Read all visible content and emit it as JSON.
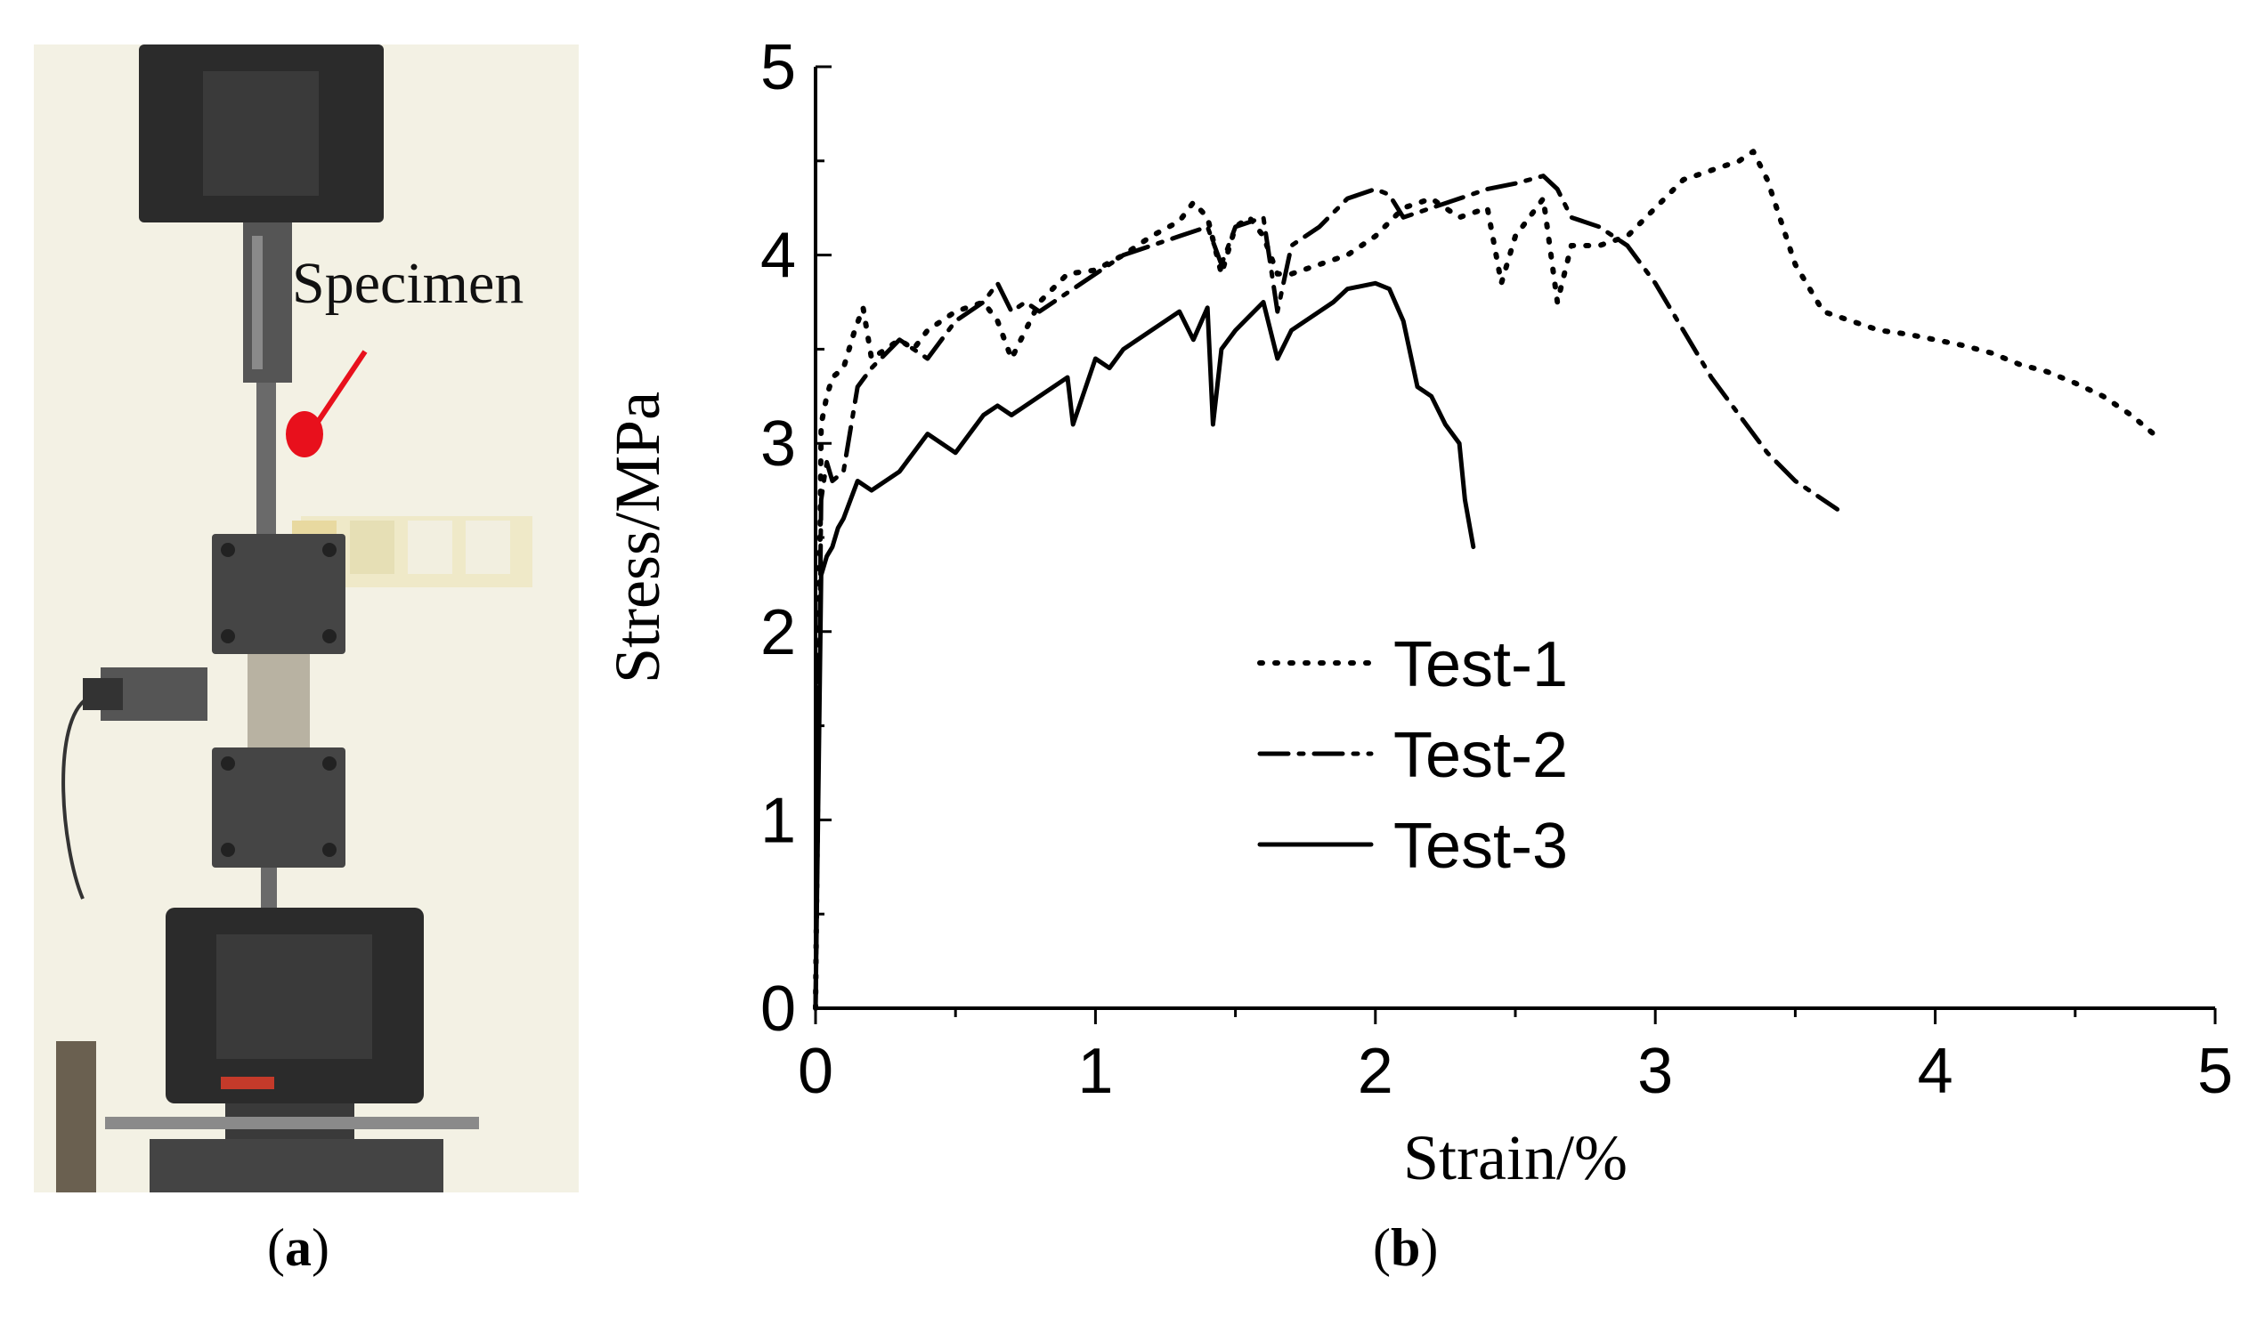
{
  "panel_a": {
    "caption_open": "(",
    "caption_letter": "a",
    "caption_close": ")",
    "specimen_label": "Specimen",
    "colors": {
      "marker": "#e8101c",
      "background": "#f3f1e4",
      "machine": "#2b2b2b"
    }
  },
  "panel_b": {
    "caption_open": "(",
    "caption_letter": "b",
    "caption_close": ")"
  },
  "chart_data": {
    "type": "line",
    "title": "",
    "xlabel": "Strain/%",
    "ylabel": "Stress/MPa",
    "xlim": [
      0,
      5
    ],
    "ylim": [
      0,
      5
    ],
    "xticks": [
      "0",
      "1",
      "2",
      "3",
      "4",
      "5"
    ],
    "yticks": [
      "0",
      "1",
      "2",
      "3",
      "4",
      "5"
    ],
    "grid": false,
    "legend": "center-left",
    "series": [
      {
        "name": "Test-1",
        "style": "dotted",
        "x": [
          0,
          0.02,
          0.04,
          0.06,
          0.1,
          0.14,
          0.17,
          0.2,
          0.25,
          0.3,
          0.35,
          0.4,
          0.5,
          0.6,
          0.65,
          0.7,
          0.8,
          0.9,
          1.0,
          1.1,
          1.2,
          1.3,
          1.35,
          1.4,
          1.45,
          1.5,
          1.55,
          1.6,
          1.65,
          1.7,
          1.8,
          1.9,
          2.0,
          2.1,
          2.2,
          2.3,
          2.4,
          2.45,
          2.5,
          2.55,
          2.6,
          2.65,
          2.7,
          2.8,
          2.9,
          3.0,
          3.1,
          3.2,
          3.3,
          3.35,
          3.4,
          3.5,
          3.6,
          3.7,
          3.8,
          3.9,
          4.0,
          4.1,
          4.2,
          4.3,
          4.4,
          4.5,
          4.6,
          4.7,
          4.78
        ],
        "y": [
          0,
          3.1,
          3.25,
          3.35,
          3.4,
          3.6,
          3.72,
          3.45,
          3.5,
          3.55,
          3.5,
          3.6,
          3.7,
          3.75,
          3.65,
          3.45,
          3.75,
          3.9,
          3.92,
          4.0,
          4.1,
          4.18,
          4.28,
          4.2,
          3.9,
          4.15,
          4.2,
          4.1,
          3.9,
          3.9,
          3.95,
          4.0,
          4.1,
          4.25,
          4.3,
          4.2,
          4.25,
          3.85,
          4.1,
          4.2,
          4.3,
          3.75,
          4.05,
          4.05,
          4.1,
          4.25,
          4.4,
          4.45,
          4.5,
          4.55,
          4.4,
          3.95,
          3.7,
          3.65,
          3.6,
          3.58,
          3.55,
          3.52,
          3.48,
          3.42,
          3.38,
          3.32,
          3.25,
          3.15,
          3.05
        ]
      },
      {
        "name": "Test-2",
        "style": "dashdot",
        "x": [
          0,
          0.02,
          0.04,
          0.06,
          0.1,
          0.15,
          0.2,
          0.3,
          0.4,
          0.5,
          0.6,
          0.65,
          0.7,
          0.75,
          0.8,
          0.9,
          1.0,
          1.1,
          1.2,
          1.3,
          1.4,
          1.45,
          1.5,
          1.6,
          1.65,
          1.7,
          1.8,
          1.9,
          2.0,
          2.05,
          2.1,
          2.2,
          2.3,
          2.4,
          2.5,
          2.6,
          2.65,
          2.7,
          2.8,
          2.9,
          3.0,
          3.1,
          3.2,
          3.3,
          3.4,
          3.5,
          3.6,
          3.65
        ],
        "y": [
          0,
          2.7,
          2.9,
          2.8,
          2.85,
          3.3,
          3.4,
          3.55,
          3.45,
          3.65,
          3.75,
          3.85,
          3.7,
          3.75,
          3.7,
          3.8,
          3.9,
          4.0,
          4.05,
          4.1,
          4.15,
          3.95,
          4.15,
          4.2,
          3.7,
          4.05,
          4.15,
          4.3,
          4.35,
          4.32,
          4.2,
          4.25,
          4.3,
          4.35,
          4.38,
          4.42,
          4.35,
          4.2,
          4.15,
          4.05,
          3.85,
          3.6,
          3.35,
          3.15,
          2.95,
          2.8,
          2.7,
          2.65
        ]
      },
      {
        "name": "Test-3",
        "style": "solid",
        "x": [
          0,
          0.02,
          0.04,
          0.06,
          0.08,
          0.1,
          0.15,
          0.2,
          0.3,
          0.4,
          0.5,
          0.6,
          0.65,
          0.7,
          0.8,
          0.9,
          0.92,
          1.0,
          1.05,
          1.1,
          1.2,
          1.3,
          1.35,
          1.4,
          1.42,
          1.45,
          1.5,
          1.6,
          1.65,
          1.7,
          1.8,
          1.85,
          1.9,
          2.0,
          2.05,
          2.1,
          2.15,
          2.2,
          2.25,
          2.3,
          2.32,
          2.35
        ],
        "y": [
          0,
          2.3,
          2.4,
          2.45,
          2.55,
          2.6,
          2.8,
          2.75,
          2.85,
          3.05,
          2.95,
          3.15,
          3.2,
          3.15,
          3.25,
          3.35,
          3.1,
          3.45,
          3.4,
          3.5,
          3.6,
          3.7,
          3.55,
          3.72,
          3.1,
          3.5,
          3.6,
          3.75,
          3.45,
          3.6,
          3.7,
          3.75,
          3.82,
          3.85,
          3.82,
          3.65,
          3.3,
          3.25,
          3.1,
          3.0,
          2.7,
          2.45
        ]
      }
    ]
  }
}
